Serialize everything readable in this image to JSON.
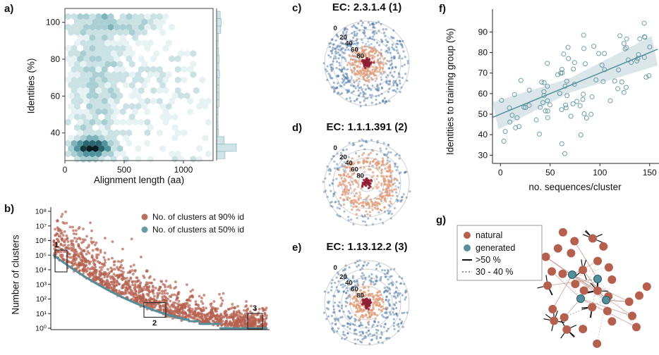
{
  "figure": {
    "panel_labels": {
      "a": "a)",
      "b": "b)",
      "c": "c)",
      "d": "d)",
      "e": "e)",
      "f": "f)",
      "g": "g)"
    }
  },
  "colors": {
    "teal": "#568f9b",
    "teal_fill": "#cfe4e7",
    "red": "#b5604e",
    "salmon": "#e09a76",
    "blue": "#4a74a5",
    "dark_red": "#8e2036"
  },
  "chart_data": [
    {
      "panel": "a",
      "type": "hexbin",
      "xlabel": "Alignment length (aa)",
      "ylabel": "Identities (%)",
      "xlim": [
        0,
        1250
      ],
      "ylim": [
        25,
        106
      ],
      "xticks": [
        0,
        500,
        1000
      ],
      "yticks": [
        40,
        60,
        80,
        100
      ],
      "marginal": "right histogram of identities distribution",
      "clusters": [
        {
          "n": 700,
          "cx": 230,
          "cy": 32,
          "sx": 80,
          "sy": 2.5
        },
        {
          "n": 550,
          "cx": 260,
          "cy": 68,
          "sx": 110,
          "sy": 23
        },
        {
          "n": 170,
          "cx": 620,
          "cy": 72,
          "sx": 240,
          "sy": 20
        },
        {
          "n": 160,
          "cx": 420,
          "cy": 99,
          "sx": 190,
          "sy": 3
        },
        {
          "n": 60,
          "cx": 950,
          "cy": 55,
          "sx": 180,
          "sy": 22
        }
      ]
    },
    {
      "panel": "b",
      "type": "rank_scatter_log",
      "ylabel": "Number of clusters",
      "yscale": "log",
      "ytick_exponents": [
        0,
        1,
        2,
        3,
        4,
        5,
        6,
        7,
        8
      ],
      "legend": [
        {
          "label": "No. of clusters at 90% id",
          "color_key": "red"
        },
        {
          "label": "No. of clusters at 50% id",
          "color_key": "teal"
        }
      ],
      "boxes": [
        {
          "label": "1"
        },
        {
          "label": "2"
        },
        {
          "label": "3"
        }
      ],
      "series": {
        "n_red": 1500,
        "n_teal": 900,
        "start_exponent": 5,
        "max_exponent_red": 7.4,
        "end_value": 1
      }
    },
    {
      "panel": "c",
      "type": "polar_scatter",
      "title": "EC: 2.3.1.4 (1)",
      "radial_ticks": [
        0,
        20,
        40,
        60,
        80
      ],
      "seed": 21,
      "rings": [
        {
          "color_key": "blue",
          "n": 380,
          "r_min": 52,
          "r_max": 104,
          "opacity": 0.5
        },
        {
          "color_key": "blue",
          "n": 60,
          "r_min": 25,
          "r_max": 52,
          "opacity": 0.35
        },
        {
          "color_key": "salmon",
          "n": 210,
          "r_mean": 28,
          "r_sd": 10,
          "opacity": 0.7
        },
        {
          "color_key": "dark_red",
          "n": 80,
          "r_mean": 6,
          "r_sd": 4,
          "opacity": 0.85
        }
      ]
    },
    {
      "panel": "d",
      "type": "polar_scatter",
      "title": "EC: 1.1.1.391 (2)",
      "radial_ticks": [
        0,
        20,
        40,
        60,
        80
      ],
      "seed": 33,
      "rings": [
        {
          "color_key": "blue",
          "n": 150,
          "r_min": 72,
          "r_max": 104,
          "opacity": 0.45
        },
        {
          "color_key": "blue",
          "n": 40,
          "r_min": 35,
          "r_max": 70,
          "opacity": 0.3
        },
        {
          "color_key": "salmon",
          "n": 280,
          "r_mean": 55,
          "r_sd": 9,
          "opacity": 0.75
        },
        {
          "color_key": "salmon",
          "n": 40,
          "r_mean": 30,
          "r_sd": 8,
          "opacity": 0.6
        },
        {
          "color_key": "dark_red",
          "n": 50,
          "r_mean": 6,
          "r_sd": 3.5,
          "opacity": 0.85
        }
      ]
    },
    {
      "panel": "e",
      "type": "polar_scatter",
      "title": "EC: 1.13.12.2 (3)",
      "radial_ticks": [
        0,
        20,
        40,
        60,
        80
      ],
      "seed": 55,
      "rings": [
        {
          "color_key": "blue",
          "n": 340,
          "r_min": 45,
          "r_max": 104,
          "opacity": 0.5
        },
        {
          "color_key": "salmon",
          "n": 170,
          "r_mean": 26,
          "r_sd": 9,
          "opacity": 0.75
        },
        {
          "color_key": "dark_red",
          "n": 70,
          "r_mean": 6,
          "r_sd": 4,
          "opacity": 0.85
        }
      ]
    },
    {
      "panel": "f",
      "type": "scatter",
      "xlabel": "no. sequences/cluster",
      "ylabel": "Identities to training group (%)",
      "xlim": [
        -8,
        158
      ],
      "ylim": [
        26,
        97
      ],
      "xticks": [
        0,
        50,
        100,
        150
      ],
      "yticks": [
        30,
        40,
        50,
        60,
        70,
        80,
        90
      ],
      "n_points": 95,
      "trend": {
        "intercept": 50,
        "slope": 0.2,
        "noise_sd": 12.5
      },
      "regression_line": {
        "x_start": -8,
        "y_start": 48.4,
        "x_end": 158,
        "y_end": 81.6
      },
      "marker": "open-circle"
    },
    {
      "panel": "g",
      "type": "network",
      "legend": [
        {
          "label": "natural",
          "marker": "dot",
          "color_key": "red"
        },
        {
          "label": "generated",
          "marker": "dot",
          "color_key": "teal"
        },
        {
          "label": ">50 %",
          "marker": "solid-line"
        },
        {
          "label": "30 - 40 %",
          "marker": "dotted-line"
        }
      ],
      "n_natural": 32,
      "n_generated": 4,
      "generated_positions": [
        [
          196,
          92
        ],
        [
          232,
          98
        ],
        [
          208,
          126
        ],
        [
          244,
          128
        ]
      ]
    }
  ]
}
